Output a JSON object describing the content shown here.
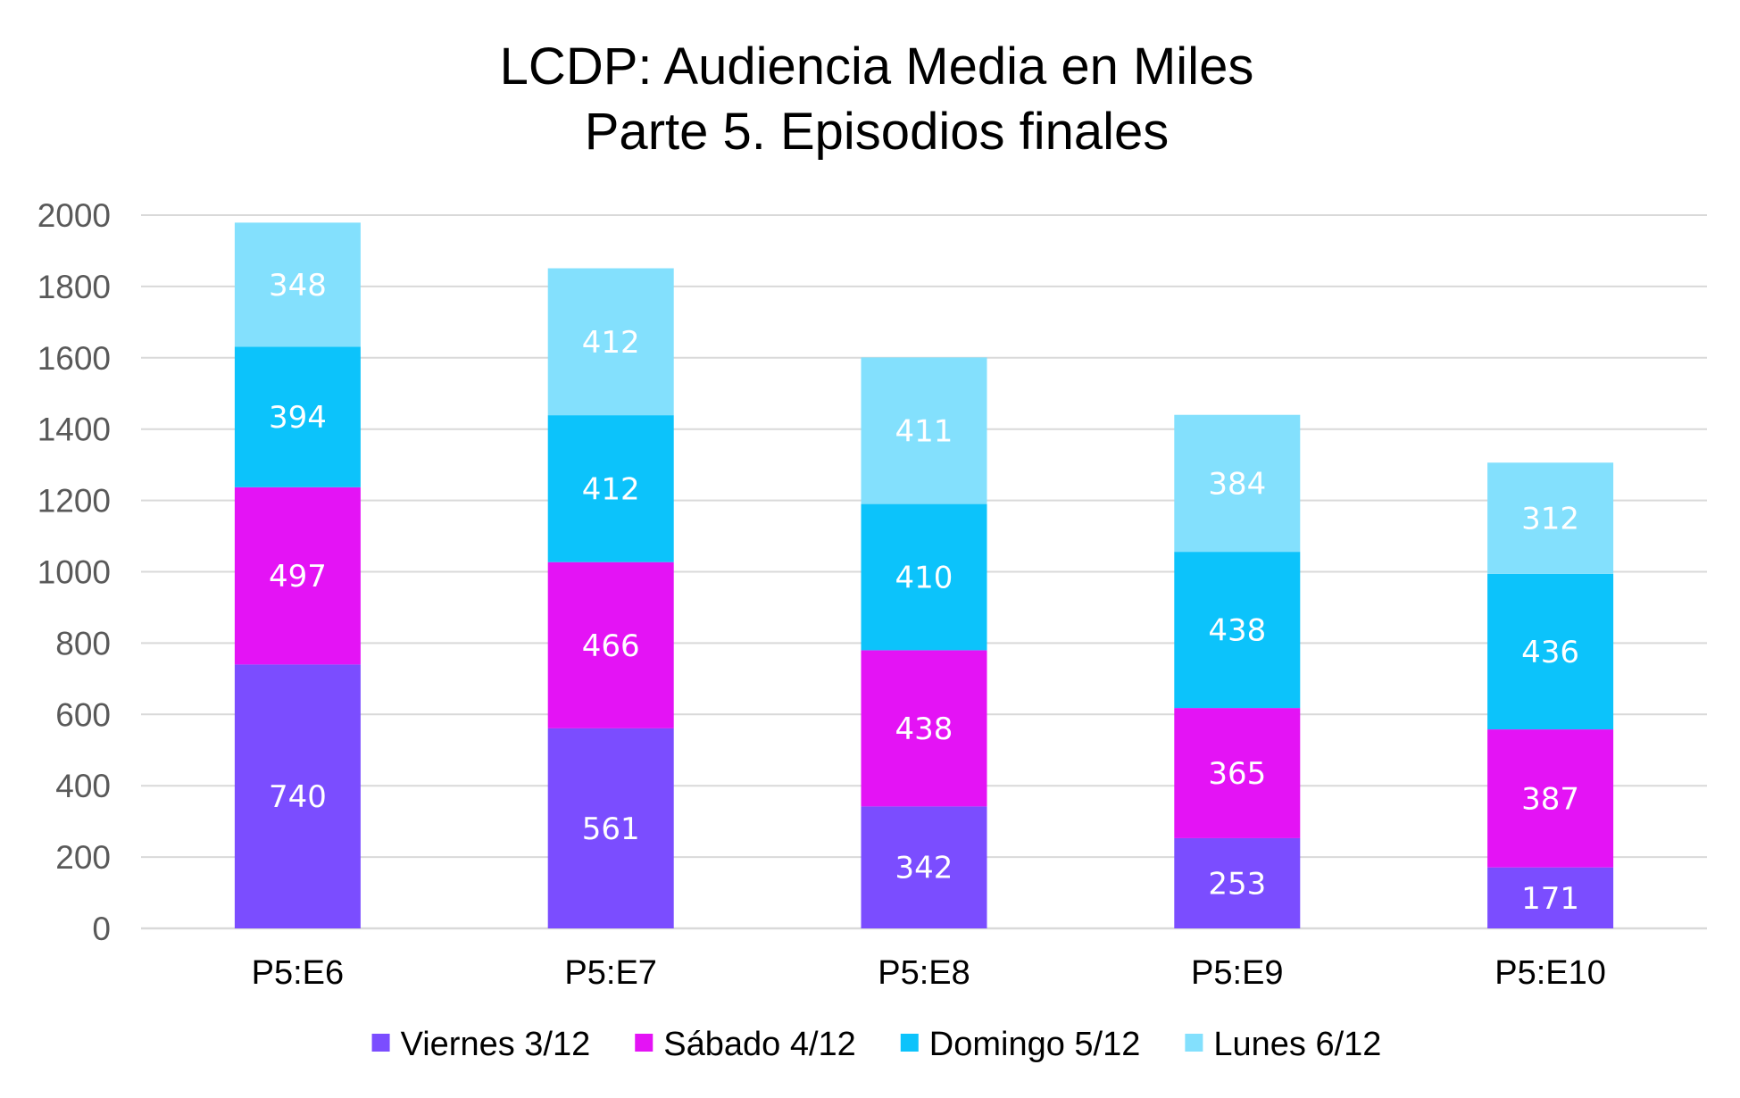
{
  "chart_data": {
    "type": "bar",
    "stacked": true,
    "title": "LCDP: Audiencia Media en Miles",
    "subtitle": "Parte 5. Episodios finales",
    "xlabel": "",
    "ylabel": "",
    "ylim": [
      0,
      2000
    ],
    "yticks": [
      0,
      200,
      400,
      600,
      800,
      1000,
      1200,
      1400,
      1600,
      1800,
      2000
    ],
    "grid": true,
    "legend_position": "bottom",
    "categories": [
      "P5:E6",
      "P5:E7",
      "P5:E8",
      "P5:E9",
      "P5:E10"
    ],
    "series": [
      {
        "name": "Viernes 3/12",
        "color": "#7b4dff",
        "values": [
          740,
          561,
          342,
          253,
          171
        ]
      },
      {
        "name": "Sábado 4/12",
        "color": "#e413f5",
        "values": [
          497,
          466,
          438,
          365,
          387
        ]
      },
      {
        "name": "Domingo 5/12",
        "color": "#0cc3fb",
        "values": [
          394,
          412,
          410,
          438,
          436
        ]
      },
      {
        "name": "Lunes 6/12",
        "color": "#83e0fd",
        "values": [
          348,
          412,
          411,
          384,
          312
        ]
      }
    ]
  }
}
